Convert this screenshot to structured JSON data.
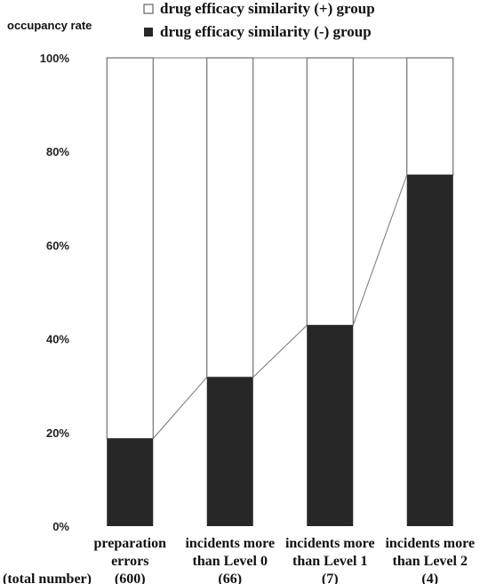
{
  "chart_data": {
    "type": "bar",
    "stacked": true,
    "percent": true,
    "ylabel": "occupancy rate",
    "ylim": [
      0,
      100
    ],
    "yticks": [
      "0%",
      "20%",
      "40%",
      "60%",
      "80%",
      "100%"
    ],
    "categories": [
      [
        "preparation",
        "errors",
        "(600)"
      ],
      [
        "incidents more",
        "than Level 0",
        "(66)"
      ],
      [
        "incidents more",
        "than Level 1",
        "(7)"
      ],
      [
        "incidents more",
        "than Level 2",
        "(4)"
      ]
    ],
    "row_label": "(total number)",
    "series": [
      {
        "name": "drug efficacy similarity (+) group",
        "values": [
          81.3,
          68.2,
          57.1,
          25.0
        ],
        "color": "#ffffff"
      },
      {
        "name": "drug efficacy similarity (-) group",
        "values": [
          18.7,
          31.8,
          42.9,
          75.0
        ],
        "color": "#262626"
      }
    ],
    "connector_lines": true,
    "legend_position": "top"
  }
}
